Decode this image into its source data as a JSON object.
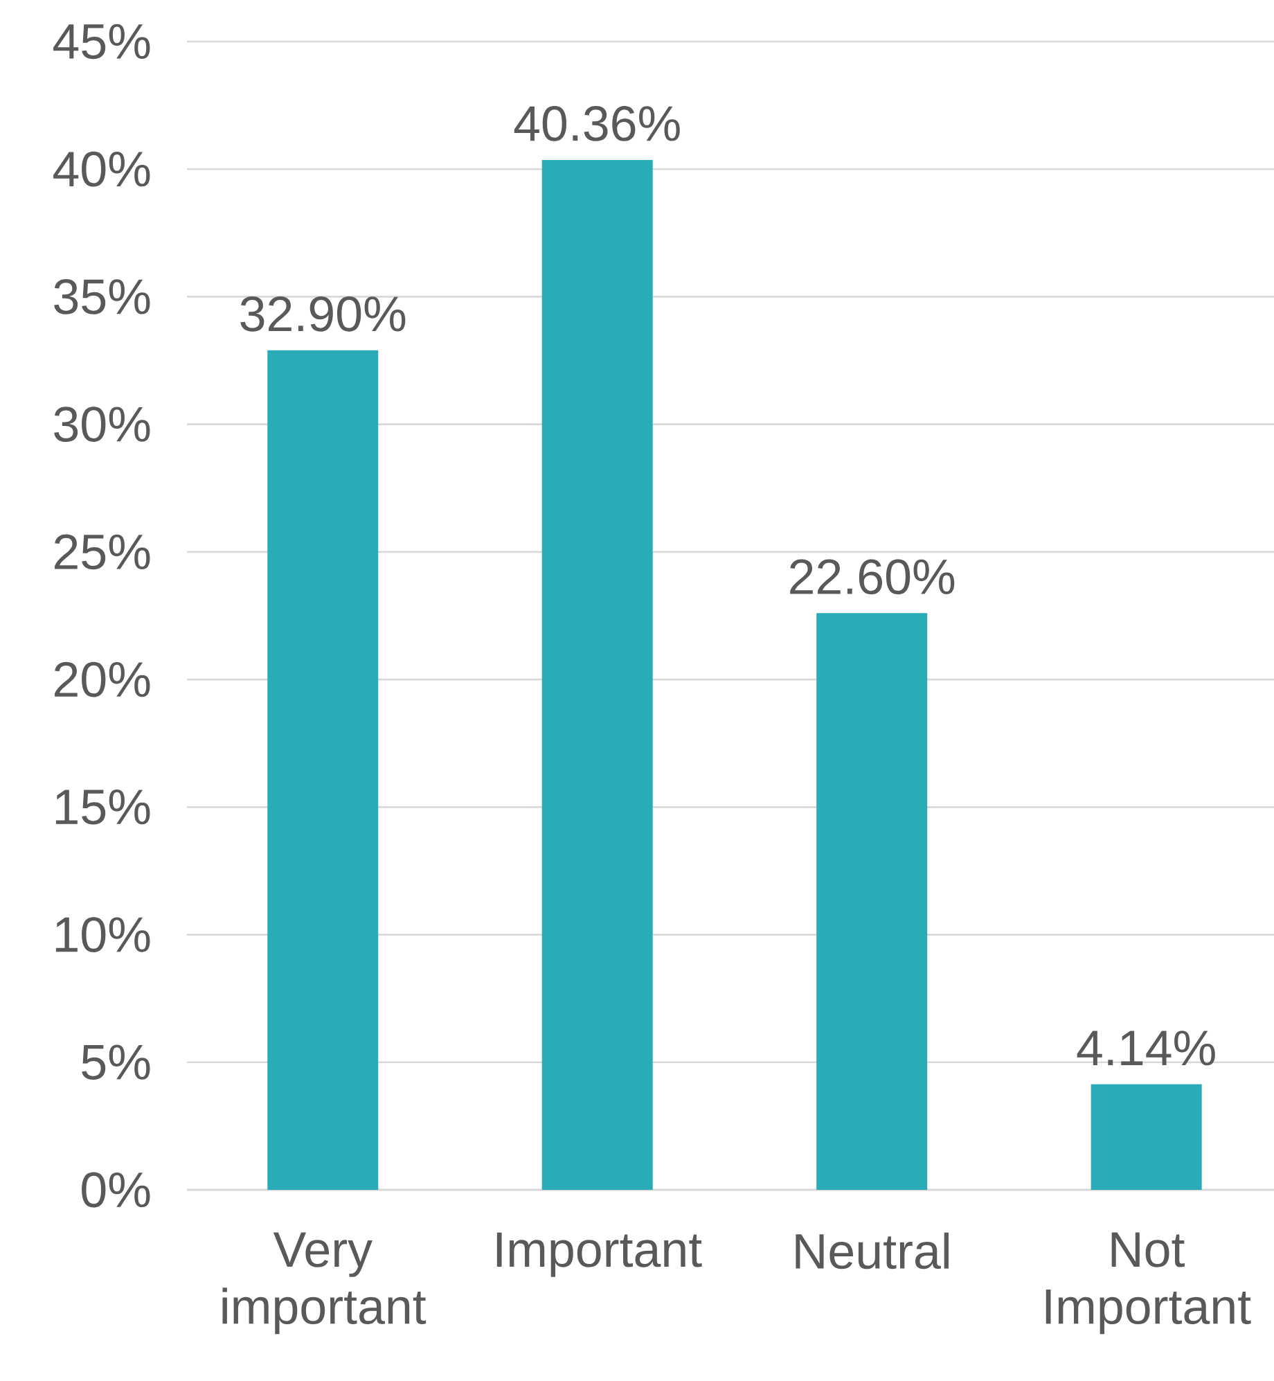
{
  "chart_data": {
    "type": "bar",
    "categories": [
      "Very important",
      "Important",
      "Neutral",
      "Not Important"
    ],
    "values": [
      32.9,
      40.36,
      22.6,
      4.14
    ],
    "value_labels": [
      "32.90%",
      "40.36%",
      "22.60%",
      "4.14%"
    ],
    "color": "#2aacb8",
    "ylim": [
      0,
      45
    ],
    "yticks": [
      {
        "value": 0,
        "label": "0%"
      },
      {
        "value": 5,
        "label": "5%"
      },
      {
        "value": 10,
        "label": "10%"
      },
      {
        "value": 15,
        "label": "15%"
      },
      {
        "value": 20,
        "label": "20%"
      },
      {
        "value": 25,
        "label": "25%"
      },
      {
        "value": 30,
        "label": "30%"
      },
      {
        "value": 35,
        "label": "35%"
      },
      {
        "value": 40,
        "label": "40%"
      },
      {
        "value": 45,
        "label": "45%"
      }
    ],
    "grid": "y"
  }
}
